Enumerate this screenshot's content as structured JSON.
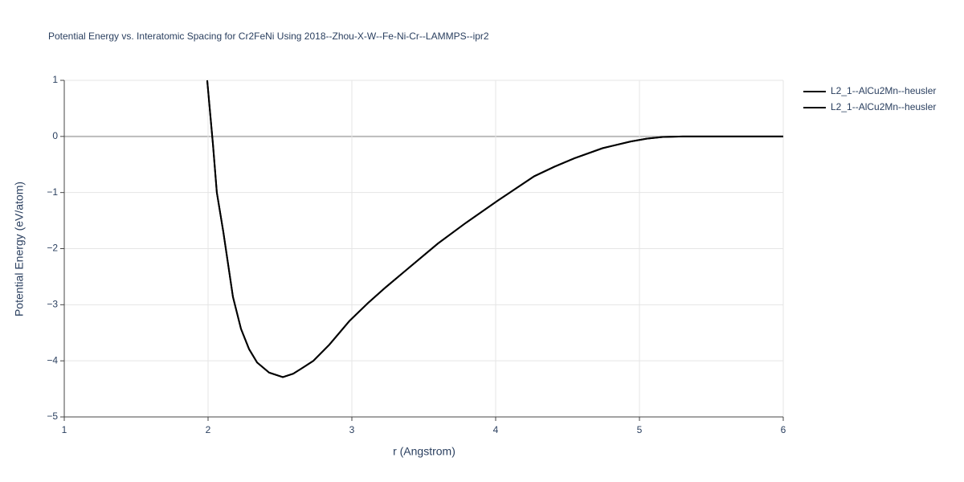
{
  "chart_data": {
    "type": "line",
    "title": "Potential Energy vs. Interatomic Spacing for Cr2FeNi Using 2018--Zhou-X-W--Fe-Ni-Cr--LAMMPS--ipr2",
    "x_label": "r (Angstrom)",
    "y_label": "Potential Energy (eV/atom)",
    "xlim": [
      1,
      6
    ],
    "ylim": [
      -5,
      1
    ],
    "xticks": [
      1,
      2,
      3,
      4,
      5,
      6
    ],
    "yticks": [
      {
        "value": -5,
        "label": "−5"
      },
      {
        "value": -4,
        "label": "−4"
      },
      {
        "value": -3,
        "label": "−3"
      },
      {
        "value": -2,
        "label": "−2"
      },
      {
        "value": -1,
        "label": "−1"
      },
      0,
      1
    ],
    "grid": true,
    "legend": "top-right",
    "x": [
      1.994,
      2.034,
      2.061,
      2.106,
      2.173,
      2.229,
      2.285,
      2.341,
      2.425,
      2.52,
      2.592,
      2.648,
      2.732,
      2.844,
      2.983,
      3.112,
      3.235,
      3.43,
      3.598,
      3.793,
      4.017,
      4.268,
      4.408,
      4.547,
      4.743,
      4.939,
      5.05,
      5.162,
      5.302,
      6.0
    ],
    "series": [
      {
        "name": "L2_1--AlCu2Mn--heusler",
        "color": "#000000",
        "values": [
          1,
          -0.14,
          -1.0,
          -1.7,
          -2.86,
          -3.43,
          -3.79,
          -4.03,
          -4.21,
          -4.29,
          -4.23,
          -4.14,
          -4.0,
          -3.71,
          -3.29,
          -2.97,
          -2.69,
          -2.27,
          -1.91,
          -1.54,
          -1.14,
          -0.71,
          -0.54,
          -0.39,
          -0.21,
          -0.09,
          -0.04,
          -0.01,
          0,
          0
        ]
      },
      {
        "name": "L2_1--AlCu2Mn--heusler",
        "color": "#000000",
        "values": [
          1,
          -0.14,
          -1.0,
          -1.7,
          -2.86,
          -3.43,
          -3.79,
          -4.03,
          -4.21,
          -4.29,
          -4.23,
          -4.14,
          -4.0,
          -3.71,
          -3.29,
          -2.97,
          -2.69,
          -2.27,
          -1.91,
          -1.54,
          -1.14,
          -0.71,
          -0.54,
          -0.39,
          -0.21,
          -0.09,
          -0.04,
          -0.01,
          0,
          0
        ]
      }
    ]
  }
}
